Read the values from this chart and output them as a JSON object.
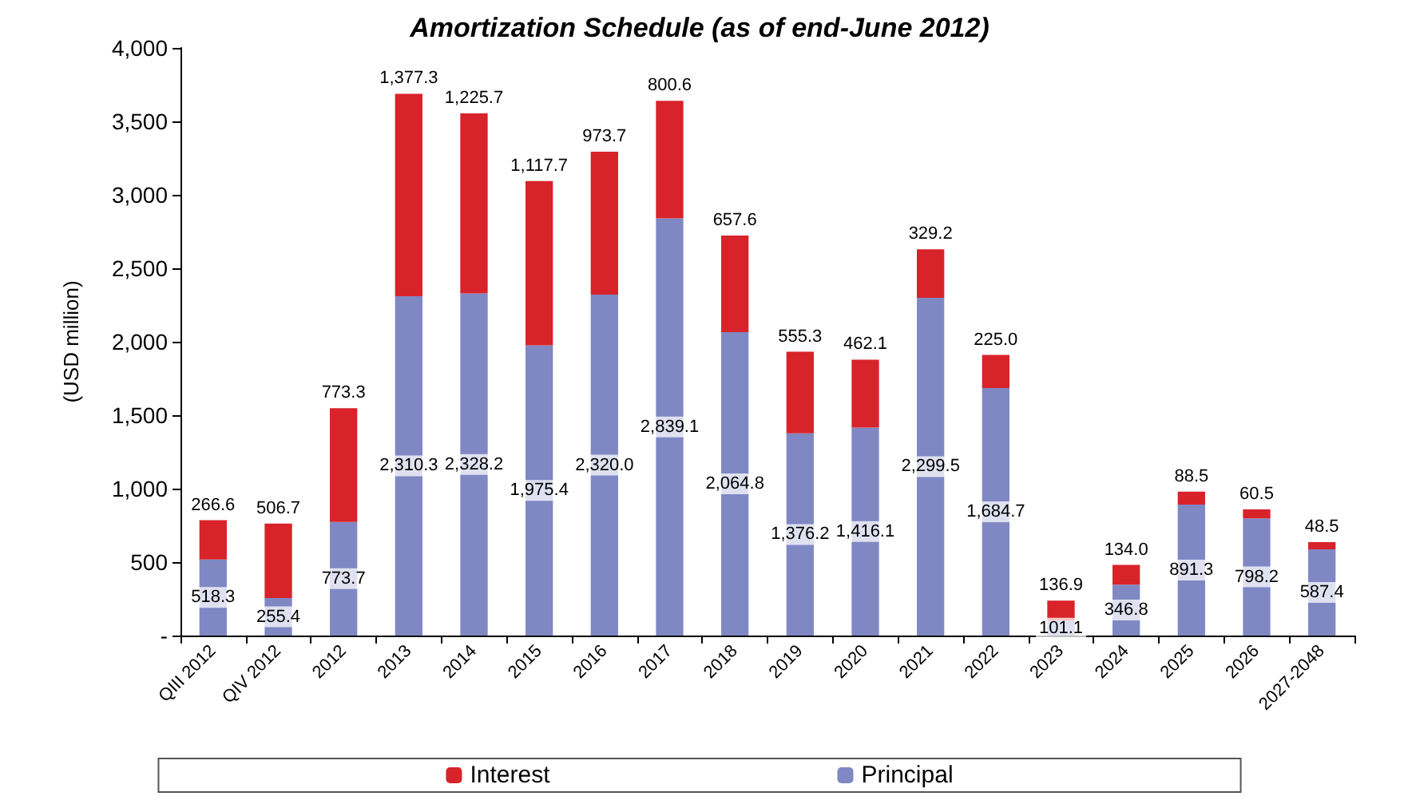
{
  "chart_data": {
    "type": "bar",
    "title": "Amortization Schedule (as of end-June 2012)",
    "ylabel": "(USD million)",
    "categories": [
      "QIII 2012",
      "QIV 2012",
      "2012",
      "2013",
      "2014",
      "2015",
      "2016",
      "2017",
      "2018",
      "2019",
      "2020",
      "2021",
      "2022",
      "2023",
      "2024",
      "2025",
      "2026",
      "2027-2048"
    ],
    "stacked": true,
    "series": [
      {
        "name": "Principal",
        "color": "#8088c4",
        "values": [
          518.3,
          255.4,
          773.7,
          2310.3,
          2328.2,
          1975.4,
          2320.0,
          2839.1,
          2064.8,
          1376.2,
          1416.1,
          2299.5,
          1684.7,
          101.1,
          346.8,
          891.3,
          798.2,
          587.4
        ],
        "value_labels": [
          "518.3",
          "255.4",
          "773.7",
          "2,310.3",
          "2,328.2",
          "1,975.4",
          "2,320.0",
          "2,839.1",
          "2,064.8",
          "1,376.2",
          "1,416.1",
          "2,299.5",
          "1,684.7",
          "101.1",
          "346.8",
          "891.3",
          "798.2",
          "587.4"
        ]
      },
      {
        "name": "Interest",
        "color": "#d8232a",
        "values": [
          266.6,
          506.7,
          773.3,
          1377.3,
          1225.7,
          1117.7,
          973.7,
          800.6,
          657.6,
          555.3,
          462.1,
          329.2,
          225.0,
          136.9,
          134.0,
          88.5,
          60.5,
          48.5
        ],
        "value_labels": [
          "266.6",
          "506.7",
          "773.3",
          "1,377.3",
          "1,225.7",
          "1,117.7",
          "973.7",
          "800.6",
          "657.6",
          "555.3",
          "462.1",
          "329.2",
          "225.0",
          "136.9",
          "134.0",
          "88.5",
          "60.5",
          "48.5"
        ]
      }
    ],
    "ylim": [
      0,
      4000
    ],
    "yticks": [
      {
        "value": 0,
        "label": "-"
      },
      {
        "value": 500,
        "label": "500"
      },
      {
        "value": 1000,
        "label": "1,000"
      },
      {
        "value": 1500,
        "label": "1,500"
      },
      {
        "value": 2000,
        "label": "2,000"
      },
      {
        "value": 2500,
        "label": "2,500"
      },
      {
        "value": 3000,
        "label": "3,000"
      },
      {
        "value": 3500,
        "label": "3,500"
      },
      {
        "value": 4000,
        "label": "4,000"
      }
    ],
    "grid": false,
    "legend": "bottom"
  }
}
